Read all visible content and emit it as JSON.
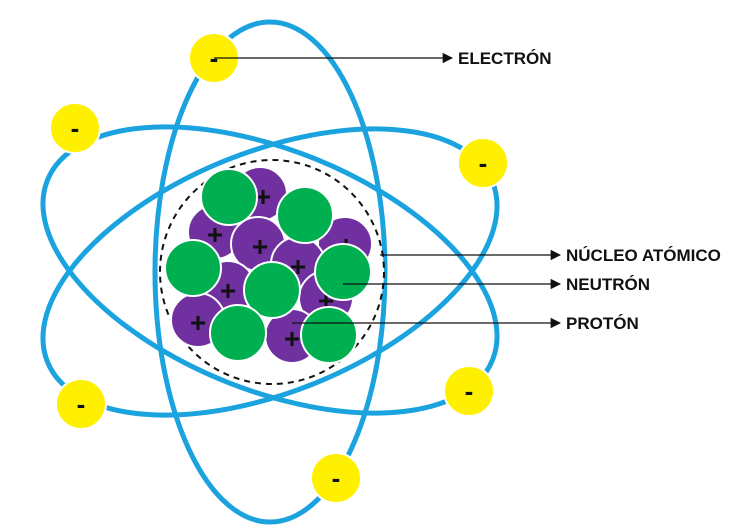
{
  "labels": {
    "electron": "ELECTRÓN",
    "nucleus": "NÚCLEO ATÓMICO",
    "neutron": "NEUTRÓN",
    "proton": "PROTÓN"
  },
  "signs": {
    "electron": "-",
    "proton": "+"
  },
  "colors": {
    "orbit": "#1aa3df",
    "electron": "#ffef00",
    "electron_ring": "#ffffff",
    "proton": "#7030a0",
    "neutron": "#00b050",
    "nucleus_boundary": "#111111",
    "arrow": "#111111"
  }
}
